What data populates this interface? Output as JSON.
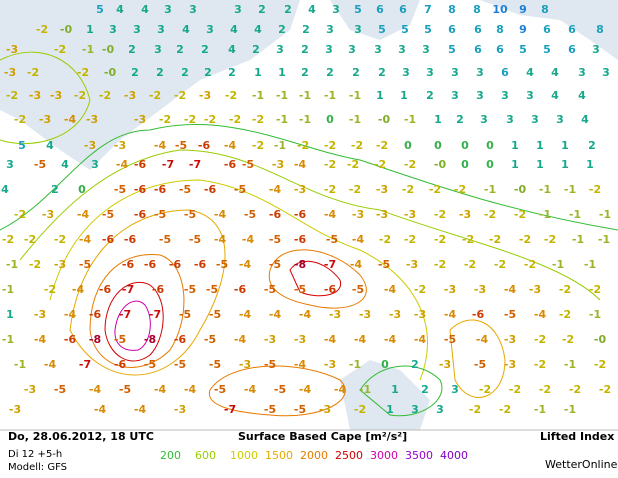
{
  "header": {
    "date": "Do, 28.06.2012, 18 UTC",
    "run": "Di 12 +5-h",
    "model": "Modell: GFS",
    "title": "Surface Based Cape [m²/s²]",
    "product": "Lifted Index",
    "brand": "WetterOnline"
  },
  "legend": [
    {
      "value": 200,
      "color": "#33bb33"
    },
    {
      "value": 600,
      "color": "#99cc00"
    },
    {
      "value": 1000,
      "color": "#cccc00"
    },
    {
      "value": 1500,
      "color": "#e6a800"
    },
    {
      "value": 2000,
      "color": "#e67a00"
    },
    {
      "value": 2500,
      "color": "#d40000"
    },
    {
      "value": 3000,
      "color": "#cc00aa"
    },
    {
      "value": 3500,
      "color": "#9900cc"
    },
    {
      "value": 4000,
      "color": "#8000c0"
    }
  ],
  "map": {
    "labels": [
      "5",
      "4",
      "4",
      "3",
      "3",
      "3",
      "2",
      "2",
      "4",
      "3",
      "5",
      "6",
      "6",
      "7",
      "8",
      "8",
      "10",
      "9",
      "8",
      "-2",
      "-0",
      "1",
      "3",
      "3",
      "3",
      "4",
      "3",
      "4",
      "4",
      "2",
      "2",
      "3",
      "3",
      "5",
      "5",
      "5",
      "6",
      "6",
      "8",
      "9",
      "6",
      "6",
      "8",
      "-3",
      "-2",
      "-1",
      "-0",
      "2",
      "3",
      "2",
      "2",
      "4",
      "2",
      "3",
      "2",
      "3",
      "3",
      "3",
      "3",
      "3",
      "5",
      "6",
      "6",
      "5",
      "5",
      "6",
      "3",
      "-3",
      "-2",
      "-2",
      "-0",
      "2",
      "2",
      "2",
      "2",
      "2",
      "1",
      "1",
      "2",
      "2",
      "2",
      "2",
      "3",
      "3",
      "3",
      "3",
      "6",
      "4",
      "4",
      "3",
      "3",
      "-2",
      "-3",
      "-3",
      "-2",
      "-2",
      "-3",
      "-2",
      "-2",
      "-3",
      "-2",
      "-1",
      "-1",
      "-1",
      "-1",
      "-1",
      "1",
      "1",
      "2",
      "3",
      "3",
      "3",
      "3",
      "4",
      "4",
      "-2",
      "-3",
      "-4",
      "-3",
      "-3",
      "-2",
      "-2",
      "-2",
      "-2",
      "-2",
      "-1",
      "-1",
      "0",
      "-1",
      "-0",
      "-1",
      "1",
      "2",
      "3",
      "3",
      "3",
      "3",
      "4",
      "5",
      "4",
      "-3",
      "-3",
      "-4",
      "-5",
      "-6",
      "-4",
      "-2",
      "-1",
      "-2",
      "-2",
      "-2",
      "-2",
      "0",
      "0",
      "0",
      "0",
      "1",
      "1",
      "1",
      "2",
      "3",
      "-5",
      "4",
      "3",
      "-4",
      "-6",
      "-7",
      "-7",
      "-6",
      "-5",
      "-3",
      "-4",
      "-2",
      "-2",
      "-2",
      "-2",
      "-0",
      "0",
      "0",
      "1",
      "1",
      "1",
      "1",
      "4",
      "2",
      "0",
      "-5",
      "-6",
      "-6",
      "-5",
      "-6",
      "-5",
      "-4",
      "-3",
      "-2",
      "-2",
      "-3",
      "-2",
      "-2",
      "-2",
      "-1",
      "-0",
      "-1",
      "-1",
      "-2",
      "-2",
      "-3",
      "-4",
      "-5",
      "-6",
      "-5",
      "-5",
      "-4",
      "-5",
      "-6",
      "-6",
      "-4",
      "-3",
      "-3",
      "-3",
      "-2",
      "-3",
      "-2",
      "-2",
      "-1",
      "-1",
      "-1",
      "-2",
      "-2",
      "-2",
      "-4",
      "-6",
      "-6",
      "-5",
      "-5",
      "-4",
      "-4",
      "-5",
      "-6",
      "-5",
      "-4",
      "-2",
      "-2",
      "-2",
      "-2",
      "-2",
      "-2",
      "-2",
      "-1",
      "-1",
      "-1",
      "-2",
      "-3",
      "-5",
      "-6",
      "-6",
      "-6",
      "-6",
      "-5",
      "-4",
      "-5",
      "-8",
      "-7",
      "-4",
      "-5",
      "-3",
      "-2",
      "-2",
      "-2",
      "-2",
      "-1",
      "-1",
      "-1",
      "-2",
      "-4",
      "-6",
      "-7",
      "-6",
      "-5",
      "-5",
      "-6",
      "-5",
      "-5",
      "-6",
      "-5",
      "-4",
      "-2",
      "-3",
      "-3",
      "-4",
      "-3",
      "-2",
      "-2",
      "1",
      "-3",
      "-4",
      "-6",
      "-7",
      "-7",
      "-5",
      "-5",
      "-4",
      "-4",
      "-4",
      "-3",
      "-3",
      "-3",
      "-3",
      "-4",
      "-6",
      "-5",
      "-4",
      "-2",
      "-1",
      "-1",
      "-4",
      "-6",
      "-8",
      "-5",
      "-8",
      "-6",
      "-5",
      "-4",
      "-3",
      "-3",
      "-4",
      "-4",
      "-4",
      "-4",
      "-5",
      "-4",
      "-3",
      "-2",
      "-2",
      "-0",
      "-1",
      "-4",
      "-7",
      "-6",
      "-5",
      "-5",
      "-5",
      "-3",
      "-5",
      "-4",
      "-3",
      "-1",
      "0",
      "2",
      "-3",
      "-5",
      "-3",
      "-2",
      "-1",
      "-2",
      "-3",
      "-5",
      "-4",
      "-5",
      "-4",
      "-4",
      "-5",
      "-4",
      "-5",
      "-4",
      "-4",
      "-1",
      "1",
      "2",
      "3",
      "-2",
      "-2",
      "-2",
      "-2",
      "-2",
      "-3",
      "-4",
      "-4",
      "-3",
      "-7",
      "-5",
      "-5",
      "-3",
      "-2",
      "1",
      "3",
      "3",
      "-2",
      "-2",
      "-1",
      "-1"
    ]
  }
}
